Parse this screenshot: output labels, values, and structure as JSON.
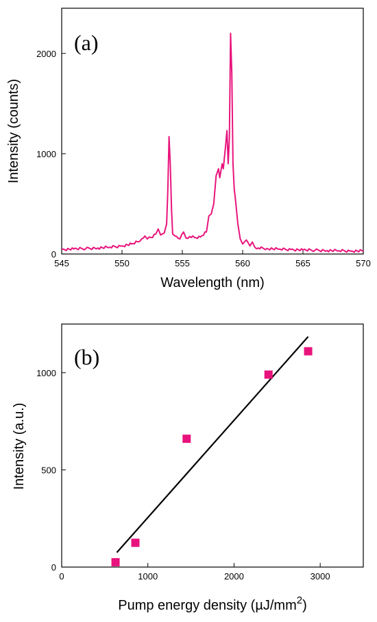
{
  "chart_data": [
    {
      "type": "line",
      "panel_label": "(a)",
      "xlabel": "Wavelength (nm)",
      "ylabel": "Intensity (counts)",
      "xlim": [
        545,
        570
      ],
      "ylim": [
        0,
        2450
      ],
      "xticks": [
        545,
        550,
        555,
        560,
        565,
        570
      ],
      "yticks": [
        0,
        1000,
        2000
      ],
      "color": "#e8137c",
      "series": [
        {
          "x": [
            545,
            546,
            547,
            548,
            549,
            550,
            550.8,
            551.5,
            551.9,
            552.1,
            552.4,
            552.8,
            553.0,
            553.2,
            553.5,
            553.7,
            553.8,
            553.9,
            554.0,
            554.1,
            554.2,
            554.4,
            554.8,
            555.1,
            555.3,
            555.6,
            556.0,
            556.5,
            557.0,
            557.2,
            557.4,
            557.6,
            557.8,
            558.0,
            558.1,
            558.3,
            558.4,
            558.6,
            558.7,
            558.8,
            558.9,
            559.0,
            559.1,
            559.2,
            559.3,
            559.4,
            559.6,
            559.8,
            560.0,
            560.3,
            560.6,
            560.8,
            561.0,
            561.3,
            562,
            563,
            564,
            565,
            566,
            567,
            568,
            569,
            570
          ],
          "y": [
            45,
            50,
            55,
            60,
            68,
            80,
            100,
            130,
            180,
            150,
            165,
            200,
            250,
            190,
            210,
            300,
            650,
            1170,
            900,
            450,
            200,
            180,
            150,
            220,
            160,
            175,
            165,
            170,
            220,
            380,
            400,
            500,
            780,
            850,
            760,
            900,
            850,
            1100,
            1230,
            900,
            1150,
            2200,
            1800,
            900,
            650,
            550,
            300,
            150,
            100,
            140,
            80,
            120,
            70,
            60,
            55,
            48,
            45,
            40,
            38,
            35,
            33,
            30,
            30
          ]
        }
      ]
    },
    {
      "type": "scatter",
      "panel_label": "(b)",
      "xlabel": "Pump energy density (µJ/mm",
      "xlabel_sup": "2",
      "xlabel_close": ")",
      "ylabel": "Intensity (a.u.)",
      "xlim": [
        0,
        3500
      ],
      "ylim": [
        0,
        1250
      ],
      "xticks": [
        0,
        1000,
        2000,
        3000
      ],
      "yticks": [
        0,
        500,
        1000
      ],
      "marker_color": "#e8137c",
      "line_color": "#000000",
      "series": [
        {
          "x": [
            625,
            855,
            1450,
            2400,
            2860
          ],
          "y": [
            25,
            125,
            660,
            990,
            1110
          ]
        }
      ],
      "fit_line": {
        "x": [
          640,
          2860
        ],
        "y": [
          75,
          1185
        ]
      }
    }
  ]
}
